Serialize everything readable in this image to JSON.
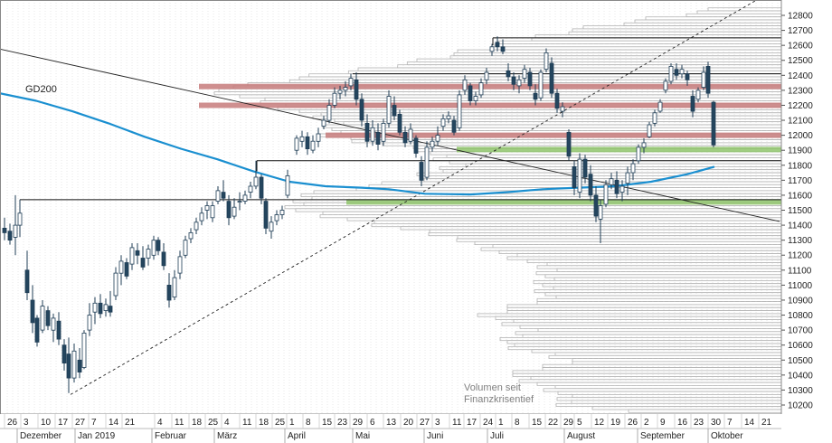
{
  "chart_data": {
    "type": "candlestick",
    "ylim": [
      10150,
      12850
    ],
    "y_ticks": [
      10200,
      10300,
      10400,
      10500,
      10600,
      10700,
      10800,
      10900,
      11000,
      11100,
      11200,
      11300,
      11400,
      11500,
      11600,
      11700,
      11800,
      11900,
      12000,
      12100,
      12200,
      12300,
      12400,
      12500,
      12600,
      12700,
      12800
    ],
    "x_day_labels": [
      "26",
      "3",
      "10",
      "17",
      "27",
      "7",
      "14",
      "21",
      "4",
      "11",
      "18",
      "25",
      "4",
      "11",
      "18",
      "25",
      "1",
      "8",
      "15",
      "23",
      "29",
      "6",
      "13",
      "20",
      "27",
      "3",
      "11",
      "17",
      "24",
      "1",
      "8",
      "15",
      "22",
      "29",
      "5",
      "12",
      "19",
      "26",
      "2",
      "9",
      "16",
      "23",
      "30",
      "7",
      "14",
      "21"
    ],
    "x_month_labels": [
      "Dezember",
      "Jan 2019",
      "Februar",
      "März",
      "April",
      "Mai",
      "Juni",
      "Juli",
      "August",
      "September",
      "Oktober"
    ],
    "moving_average": {
      "label": "GD200",
      "color": "#1a8fd0",
      "points": [
        [
          0,
          12280
        ],
        [
          40,
          12230
        ],
        [
          80,
          12160
        ],
        [
          120,
          12080
        ],
        [
          160,
          11990
        ],
        [
          200,
          11910
        ],
        [
          240,
          11840
        ],
        [
          280,
          11760
        ],
        [
          320,
          11690
        ],
        [
          360,
          11660
        ],
        [
          400,
          11650
        ],
        [
          430,
          11640
        ],
        [
          470,
          11610
        ],
        [
          520,
          11605
        ],
        [
          560,
          11620
        ],
        [
          600,
          11640
        ],
        [
          640,
          11650
        ],
        [
          680,
          11660
        ],
        [
          720,
          11690
        ],
        [
          760,
          11740
        ],
        [
          790,
          11790
        ]
      ]
    },
    "volume_profile_note": [
      "Volumen seit",
      "Finanzkrisentief"
    ],
    "resistance_zones": [
      {
        "level": 12325,
        "color": "#c77b7b"
      },
      {
        "level": 12200,
        "color": "#c77b7b"
      },
      {
        "level": 12000,
        "color": "#c77b7b"
      },
      {
        "level": 11905,
        "color": "#8fc46b"
      },
      {
        "level": 11555,
        "color": "#8fc46b"
      }
    ],
    "horizontal_lines": [
      12650,
      12410,
      11830,
      11570
    ],
    "trend_lines": [
      {
        "style": "solid",
        "from": [
          0,
          12575
        ],
        "to": [
          862,
          11425
        ]
      },
      {
        "style": "dashed",
        "from": [
          78,
          10270
        ],
        "to": [
          862,
          12990
        ]
      }
    ],
    "price_candles": [
      {
        "x": 5,
        "o": 11380,
        "h": 11450,
        "l": 11300,
        "c": 11350
      },
      {
        "x": 11,
        "o": 11360,
        "h": 11410,
        "l": 11270,
        "c": 11300
      },
      {
        "x": 17,
        "o": 11320,
        "h": 11600,
        "l": 11200,
        "c": 11400
      },
      {
        "x": 22,
        "o": 11400,
        "h": 11570,
        "l": 11320,
        "c": 11480
      },
      {
        "x": 30,
        "o": 11100,
        "h": 11230,
        "l": 10900,
        "c": 10950
      },
      {
        "x": 36,
        "o": 10900,
        "h": 11000,
        "l": 10680,
        "c": 10750
      },
      {
        "x": 41,
        "o": 10780,
        "h": 10800,
        "l": 10590,
        "c": 10620
      },
      {
        "x": 47,
        "o": 10700,
        "h": 10900,
        "l": 10680,
        "c": 10860
      },
      {
        "x": 53,
        "o": 10830,
        "h": 10860,
        "l": 10700,
        "c": 10730
      },
      {
        "x": 59,
        "o": 10700,
        "h": 10810,
        "l": 10620,
        "c": 10780
      },
      {
        "x": 65,
        "o": 10760,
        "h": 10820,
        "l": 10600,
        "c": 10640
      },
      {
        "x": 71,
        "o": 10600,
        "h": 10640,
        "l": 10430,
        "c": 10480
      },
      {
        "x": 76,
        "o": 10540,
        "h": 10650,
        "l": 10280,
        "c": 10380
      },
      {
        "x": 82,
        "o": 10380,
        "h": 10610,
        "l": 10350,
        "c": 10560
      },
      {
        "x": 88,
        "o": 10500,
        "h": 10580,
        "l": 10380,
        "c": 10420
      },
      {
        "x": 93,
        "o": 10450,
        "h": 10700,
        "l": 10440,
        "c": 10680
      },
      {
        "x": 99,
        "o": 10700,
        "h": 10880,
        "l": 10660,
        "c": 10800
      },
      {
        "x": 105,
        "o": 10820,
        "h": 10920,
        "l": 10740,
        "c": 10880
      },
      {
        "x": 111,
        "o": 10880,
        "h": 10940,
        "l": 10780,
        "c": 10810
      },
      {
        "x": 117,
        "o": 10830,
        "h": 10910,
        "l": 10790,
        "c": 10870
      },
      {
        "x": 122,
        "o": 10860,
        "h": 10960,
        "l": 10790,
        "c": 10820
      },
      {
        "x": 128,
        "o": 10930,
        "h": 11120,
        "l": 10900,
        "c": 11080
      },
      {
        "x": 134,
        "o": 11080,
        "h": 11200,
        "l": 11000,
        "c": 11160
      },
      {
        "x": 140,
        "o": 11150,
        "h": 11180,
        "l": 11040,
        "c": 11060
      },
      {
        "x": 146,
        "o": 11140,
        "h": 11280,
        "l": 11100,
        "c": 11250
      },
      {
        "x": 152,
        "o": 11230,
        "h": 11280,
        "l": 11140,
        "c": 11200
      },
      {
        "x": 158,
        "o": 11180,
        "h": 11260,
        "l": 11100,
        "c": 11120
      },
      {
        "x": 164,
        "o": 11180,
        "h": 11270,
        "l": 11130,
        "c": 11240
      },
      {
        "x": 170,
        "o": 11200,
        "h": 11330,
        "l": 11170,
        "c": 11300
      },
      {
        "x": 175,
        "o": 11300,
        "h": 11320,
        "l": 11200,
        "c": 11230
      },
      {
        "x": 181,
        "o": 11220,
        "h": 11280,
        "l": 11100,
        "c": 11130
      },
      {
        "x": 187,
        "o": 11000,
        "h": 11080,
        "l": 10850,
        "c": 10900
      },
      {
        "x": 193,
        "o": 10920,
        "h": 11100,
        "l": 10900,
        "c": 11050
      },
      {
        "x": 199,
        "o": 11080,
        "h": 11230,
        "l": 11040,
        "c": 11190
      },
      {
        "x": 205,
        "o": 11200,
        "h": 11330,
        "l": 11180,
        "c": 11300
      },
      {
        "x": 211,
        "o": 11310,
        "h": 11380,
        "l": 11280,
        "c": 11350
      },
      {
        "x": 217,
        "o": 11370,
        "h": 11450,
        "l": 11340,
        "c": 11420
      },
      {
        "x": 223,
        "o": 11430,
        "h": 11520,
        "l": 11400,
        "c": 11480
      },
      {
        "x": 229,
        "o": 11500,
        "h": 11560,
        "l": 11440,
        "c": 11530
      },
      {
        "x": 235,
        "o": 11450,
        "h": 11560,
        "l": 11420,
        "c": 11530
      },
      {
        "x": 241,
        "o": 11560,
        "h": 11660,
        "l": 11540,
        "c": 11630
      },
      {
        "x": 247,
        "o": 11620,
        "h": 11700,
        "l": 11560,
        "c": 11580
      },
      {
        "x": 253,
        "o": 11560,
        "h": 11600,
        "l": 11400,
        "c": 11450
      },
      {
        "x": 259,
        "o": 11460,
        "h": 11580,
        "l": 11440,
        "c": 11520
      },
      {
        "x": 265,
        "o": 11560,
        "h": 11620,
        "l": 11500,
        "c": 11560
      },
      {
        "x": 271,
        "o": 11560,
        "h": 11630,
        "l": 11540,
        "c": 11600
      },
      {
        "x": 277,
        "o": 11620,
        "h": 11690,
        "l": 11580,
        "c": 11660
      },
      {
        "x": 283,
        "o": 11660,
        "h": 11830,
        "l": 11640,
        "c": 11720
      },
      {
        "x": 289,
        "o": 11720,
        "h": 11740,
        "l": 11540,
        "c": 11580
      },
      {
        "x": 294,
        "o": 11560,
        "h": 11580,
        "l": 11340,
        "c": 11380
      },
      {
        "x": 300,
        "o": 11360,
        "h": 11460,
        "l": 11310,
        "c": 11420
      },
      {
        "x": 306,
        "o": 11430,
        "h": 11500,
        "l": 11400,
        "c": 11470
      },
      {
        "x": 312,
        "o": 11470,
        "h": 11530,
        "l": 11440,
        "c": 11500
      },
      {
        "x": 318,
        "o": 11600,
        "h": 11770,
        "l": 11580,
        "c": 11730
      },
      {
        "x": 328,
        "o": 11900,
        "h": 12000,
        "l": 11870,
        "c": 11980
      },
      {
        "x": 334,
        "o": 11960,
        "h": 12030,
        "l": 11920,
        "c": 11990
      },
      {
        "x": 340,
        "o": 11990,
        "h": 12020,
        "l": 11870,
        "c": 11910
      },
      {
        "x": 346,
        "o": 11900,
        "h": 12000,
        "l": 11880,
        "c": 11960
      },
      {
        "x": 352,
        "o": 11960,
        "h": 12050,
        "l": 11920,
        "c": 12010
      },
      {
        "x": 358,
        "o": 12060,
        "h": 12130,
        "l": 12040,
        "c": 12100
      },
      {
        "x": 364,
        "o": 12100,
        "h": 12240,
        "l": 12080,
        "c": 12200
      },
      {
        "x": 370,
        "o": 12200,
        "h": 12320,
        "l": 12180,
        "c": 12280
      },
      {
        "x": 376,
        "o": 12280,
        "h": 12330,
        "l": 12240,
        "c": 12300
      },
      {
        "x": 382,
        "o": 12300,
        "h": 12360,
        "l": 12260,
        "c": 12320
      },
      {
        "x": 388,
        "o": 12330,
        "h": 12410,
        "l": 12300,
        "c": 12380
      },
      {
        "x": 394,
        "o": 12370,
        "h": 12420,
        "l": 12200,
        "c": 12240
      },
      {
        "x": 400,
        "o": 12240,
        "h": 12280,
        "l": 12060,
        "c": 12100
      },
      {
        "x": 406,
        "o": 12080,
        "h": 12140,
        "l": 11920,
        "c": 11960
      },
      {
        "x": 412,
        "o": 11960,
        "h": 12100,
        "l": 11930,
        "c": 12050
      },
      {
        "x": 418,
        "o": 12020,
        "h": 12080,
        "l": 11900,
        "c": 11940
      },
      {
        "x": 424,
        "o": 11960,
        "h": 12110,
        "l": 11930,
        "c": 12080
      },
      {
        "x": 430,
        "o": 12080,
        "h": 12300,
        "l": 12050,
        "c": 12260
      },
      {
        "x": 436,
        "o": 12200,
        "h": 12260,
        "l": 12100,
        "c": 12130
      },
      {
        "x": 442,
        "o": 12140,
        "h": 12170,
        "l": 12000,
        "c": 12020
      },
      {
        "x": 448,
        "o": 12020,
        "h": 12060,
        "l": 11920,
        "c": 11950
      },
      {
        "x": 454,
        "o": 11960,
        "h": 12080,
        "l": 11940,
        "c": 12040
      },
      {
        "x": 460,
        "o": 11980,
        "h": 12000,
        "l": 11850,
        "c": 11880
      },
      {
        "x": 466,
        "o": 11820,
        "h": 11860,
        "l": 11660,
        "c": 11700
      },
      {
        "x": 472,
        "o": 11720,
        "h": 11960,
        "l": 11700,
        "c": 11920
      },
      {
        "x": 478,
        "o": 11920,
        "h": 11990,
        "l": 11890,
        "c": 11960
      },
      {
        "x": 484,
        "o": 11960,
        "h": 12060,
        "l": 11930,
        "c": 12000
      },
      {
        "x": 490,
        "o": 12060,
        "h": 12140,
        "l": 12030,
        "c": 12110
      },
      {
        "x": 496,
        "o": 12110,
        "h": 12160,
        "l": 12080,
        "c": 12130
      },
      {
        "x": 502,
        "o": 12100,
        "h": 12130,
        "l": 12000,
        "c": 12020
      },
      {
        "x": 508,
        "o": 12050,
        "h": 12300,
        "l": 12030,
        "c": 12270
      },
      {
        "x": 514,
        "o": 12300,
        "h": 12400,
        "l": 12270,
        "c": 12370
      },
      {
        "x": 520,
        "o": 12330,
        "h": 12350,
        "l": 12200,
        "c": 12230
      },
      {
        "x": 526,
        "o": 12230,
        "h": 12290,
        "l": 12200,
        "c": 12260
      },
      {
        "x": 532,
        "o": 12270,
        "h": 12380,
        "l": 12250,
        "c": 12350
      },
      {
        "x": 538,
        "o": 12370,
        "h": 12450,
        "l": 12340,
        "c": 12420
      },
      {
        "x": 544,
        "o": 12560,
        "h": 12610,
        "l": 12530,
        "c": 12590
      },
      {
        "x": 550,
        "o": 12620,
        "h": 12660,
        "l": 12560,
        "c": 12590
      },
      {
        "x": 556,
        "o": 12590,
        "h": 12640,
        "l": 12540,
        "c": 12560
      },
      {
        "x": 562,
        "o": 12430,
        "h": 12480,
        "l": 12360,
        "c": 12390
      },
      {
        "x": 568,
        "o": 12390,
        "h": 12420,
        "l": 12300,
        "c": 12340
      },
      {
        "x": 574,
        "o": 12330,
        "h": 12400,
        "l": 12280,
        "c": 12370
      },
      {
        "x": 580,
        "o": 12380,
        "h": 12470,
        "l": 12350,
        "c": 12440
      },
      {
        "x": 586,
        "o": 12420,
        "h": 12450,
        "l": 12300,
        "c": 12330
      },
      {
        "x": 592,
        "o": 12280,
        "h": 12340,
        "l": 12200,
        "c": 12240
      },
      {
        "x": 598,
        "o": 12250,
        "h": 12440,
        "l": 12230,
        "c": 12420
      },
      {
        "x": 604,
        "o": 12440,
        "h": 12580,
        "l": 12420,
        "c": 12550
      },
      {
        "x": 610,
        "o": 12480,
        "h": 12520,
        "l": 12250,
        "c": 12280
      },
      {
        "x": 616,
        "o": 12280,
        "h": 12310,
        "l": 12150,
        "c": 12180
      },
      {
        "x": 622,
        "o": 12160,
        "h": 12220,
        "l": 12120,
        "c": 12190
      },
      {
        "x": 629,
        "o": 12020,
        "h": 12040,
        "l": 11830,
        "c": 11860
      },
      {
        "x": 635,
        "o": 11790,
        "h": 11830,
        "l": 11600,
        "c": 11650
      },
      {
        "x": 641,
        "o": 11620,
        "h": 11880,
        "l": 11580,
        "c": 11840
      },
      {
        "x": 647,
        "o": 11840,
        "h": 11870,
        "l": 11680,
        "c": 11720
      },
      {
        "x": 653,
        "o": 11740,
        "h": 11800,
        "l": 11560,
        "c": 11600
      },
      {
        "x": 659,
        "o": 11600,
        "h": 11660,
        "l": 11420,
        "c": 11460
      },
      {
        "x": 664,
        "o": 11440,
        "h": 11570,
        "l": 11280,
        "c": 11530
      },
      {
        "x": 670,
        "o": 11540,
        "h": 11700,
        "l": 11520,
        "c": 11670
      },
      {
        "x": 676,
        "o": 11670,
        "h": 11750,
        "l": 11640,
        "c": 11710
      },
      {
        "x": 682,
        "o": 11700,
        "h": 11760,
        "l": 11580,
        "c": 11610
      },
      {
        "x": 688,
        "o": 11620,
        "h": 11700,
        "l": 11560,
        "c": 11660
      },
      {
        "x": 694,
        "o": 11680,
        "h": 11790,
        "l": 11600,
        "c": 11750
      },
      {
        "x": 700,
        "o": 11750,
        "h": 11840,
        "l": 11700,
        "c": 11810
      },
      {
        "x": 706,
        "o": 11830,
        "h": 11940,
        "l": 11810,
        "c": 11920
      },
      {
        "x": 712,
        "o": 11920,
        "h": 11980,
        "l": 11880,
        "c": 11950
      },
      {
        "x": 718,
        "o": 11990,
        "h": 12090,
        "l": 11980,
        "c": 12070
      },
      {
        "x": 724,
        "o": 12080,
        "h": 12170,
        "l": 12060,
        "c": 12150
      },
      {
        "x": 730,
        "o": 12160,
        "h": 12240,
        "l": 12150,
        "c": 12220
      },
      {
        "x": 736,
        "o": 12300,
        "h": 12380,
        "l": 12280,
        "c": 12360
      },
      {
        "x": 742,
        "o": 12360,
        "h": 12480,
        "l": 12340,
        "c": 12460
      },
      {
        "x": 748,
        "o": 12440,
        "h": 12480,
        "l": 12370,
        "c": 12400
      },
      {
        "x": 754,
        "o": 12410,
        "h": 12470,
        "l": 12380,
        "c": 12440
      },
      {
        "x": 760,
        "o": 12410,
        "h": 12430,
        "l": 12330,
        "c": 12370
      },
      {
        "x": 766,
        "o": 12260,
        "h": 12300,
        "l": 12120,
        "c": 12160
      },
      {
        "x": 772,
        "o": 12240,
        "h": 12320,
        "l": 12220,
        "c": 12300
      },
      {
        "x": 778,
        "o": 12320,
        "h": 12460,
        "l": 12300,
        "c": 12420
      },
      {
        "x": 783,
        "o": 12460,
        "h": 12490,
        "l": 12250,
        "c": 12280
      },
      {
        "x": 789,
        "o": 12220,
        "h": 12230,
        "l": 11920,
        "c": 11935
      }
    ]
  }
}
